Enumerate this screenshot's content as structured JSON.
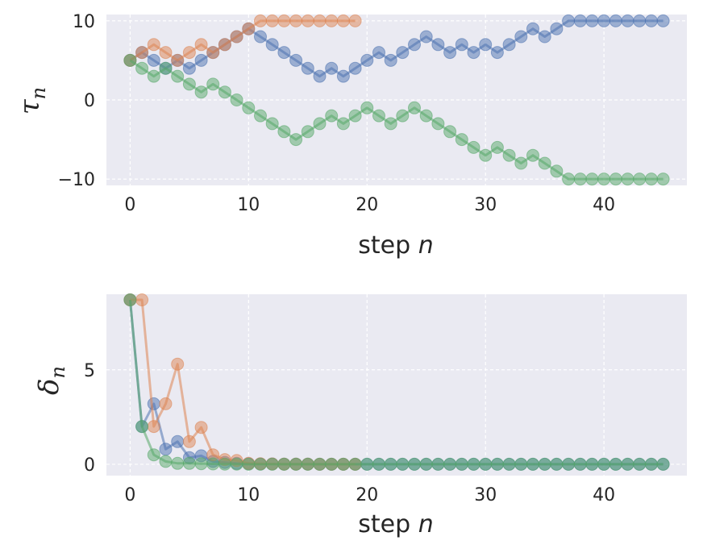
{
  "chart_data": [
    {
      "type": "line",
      "xlabel": "step n",
      "ylabel": "τ_n",
      "xlim": [
        -2,
        47
      ],
      "ylim": [
        -10.8,
        10.8
      ],
      "xticks": [
        0,
        10,
        20,
        30,
        40
      ],
      "yticks": [
        -10,
        0,
        10
      ],
      "ytick_labels": [
        "−10",
        "0",
        "10"
      ],
      "grid": true,
      "series": [
        {
          "name": "blue",
          "color": "#4C72B0",
          "x": [
            0,
            1,
            2,
            3,
            4,
            5,
            6,
            7,
            8,
            9,
            10,
            11,
            12,
            13,
            14,
            15,
            16,
            17,
            18,
            19,
            20,
            21,
            22,
            23,
            24,
            25,
            26,
            27,
            28,
            29,
            30,
            31,
            32,
            33,
            34,
            35,
            36,
            37,
            38,
            39,
            40,
            41,
            42,
            43,
            44,
            45
          ],
          "values": [
            5,
            6,
            5,
            4,
            5,
            4,
            5,
            6,
            7,
            8,
            9,
            8,
            7,
            6,
            5,
            4,
            3,
            4,
            3,
            4,
            5,
            6,
            5,
            6,
            7,
            8,
            7,
            6,
            7,
            6,
            7,
            6,
            7,
            8,
            9,
            8,
            9,
            10,
            10,
            10,
            10,
            10,
            10,
            10,
            10,
            10
          ]
        },
        {
          "name": "orange",
          "color": "#DD8452",
          "x": [
            0,
            1,
            2,
            3,
            4,
            5,
            6,
            7,
            8,
            9,
            10,
            11,
            12,
            13,
            14,
            15,
            16,
            17,
            18,
            19
          ],
          "values": [
            5,
            6,
            7,
            6,
            5,
            6,
            7,
            6,
            7,
            8,
            9,
            10,
            10,
            10,
            10,
            10,
            10,
            10,
            10,
            10
          ]
        },
        {
          "name": "green",
          "color": "#55A868",
          "x": [
            0,
            1,
            2,
            3,
            4,
            5,
            6,
            7,
            8,
            9,
            10,
            11,
            12,
            13,
            14,
            15,
            16,
            17,
            18,
            19,
            20,
            21,
            22,
            23,
            24,
            25,
            26,
            27,
            28,
            29,
            30,
            31,
            32,
            33,
            34,
            35,
            36,
            37,
            38,
            39,
            40,
            41,
            42,
            43,
            44,
            45
          ],
          "values": [
            5,
            4,
            3,
            4,
            3,
            2,
            1,
            2,
            1,
            0,
            -1,
            -2,
            -3,
            -4,
            -5,
            -4,
            -3,
            -2,
            -3,
            -2,
            -1,
            -2,
            -3,
            -2,
            -1,
            -2,
            -3,
            -4,
            -5,
            -6,
            -7,
            -6,
            -7,
            -8,
            -7,
            -8,
            -9,
            -10,
            -10,
            -10,
            -10,
            -10,
            -10,
            -10,
            -10,
            -10
          ]
        }
      ]
    },
    {
      "type": "line",
      "xlabel": "step n",
      "ylabel": "δ_n",
      "xlim": [
        -2,
        47
      ],
      "ylim": [
        -0.6,
        9.0
      ],
      "xticks": [
        0,
        10,
        20,
        30,
        40
      ],
      "yticks": [
        0,
        5
      ],
      "ytick_labels": [
        "0",
        "5"
      ],
      "grid": true,
      "series": [
        {
          "name": "blue",
          "color": "#4C72B0",
          "x": [
            0,
            1,
            2,
            3,
            4,
            5,
            6,
            7,
            8,
            9,
            10,
            11,
            12,
            13,
            14,
            15,
            16,
            17,
            18,
            19,
            20,
            21,
            22,
            23,
            24,
            25,
            26,
            27,
            28,
            29,
            30,
            31,
            32,
            33,
            34,
            35,
            36,
            37,
            38,
            39,
            40,
            41,
            42,
            43,
            44,
            45
          ],
          "values": [
            8.7,
            2.0,
            3.2,
            0.8,
            1.2,
            0.35,
            0.45,
            0.15,
            0.1,
            0.05,
            0.03,
            0.02,
            0.02,
            0.01,
            0.01,
            0.01,
            0,
            0,
            0,
            0,
            0,
            0,
            0,
            0,
            0,
            0,
            0,
            0,
            0,
            0,
            0,
            0,
            0,
            0,
            0,
            0,
            0,
            0,
            0,
            0,
            0,
            0,
            0,
            0,
            0,
            0
          ]
        },
        {
          "name": "orange",
          "color": "#DD8452",
          "x": [
            0,
            1,
            2,
            3,
            4,
            5,
            6,
            7,
            8,
            9,
            10,
            11,
            12,
            13,
            14,
            15,
            16,
            17,
            18,
            19
          ],
          "values": [
            8.7,
            8.7,
            2.0,
            3.2,
            5.3,
            1.2,
            1.95,
            0.5,
            0.25,
            0.2,
            0.05,
            0.03,
            0.02,
            0.01,
            0.01,
            0.01,
            0,
            0,
            0,
            0
          ]
        },
        {
          "name": "green",
          "color": "#55A868",
          "x": [
            0,
            1,
            2,
            3,
            4,
            5,
            6,
            7,
            8,
            9,
            10,
            11,
            12,
            13,
            14,
            15,
            16,
            17,
            18,
            19,
            20,
            21,
            22,
            23,
            24,
            25,
            26,
            27,
            28,
            29,
            30,
            31,
            32,
            33,
            34,
            35,
            36,
            37,
            38,
            39,
            40,
            41,
            42,
            43,
            44,
            45
          ],
          "values": [
            8.7,
            2.0,
            0.5,
            0.15,
            0.05,
            0.05,
            0.03,
            0.02,
            0.01,
            0.01,
            0,
            0,
            0,
            0,
            0,
            0,
            0,
            0,
            0,
            0,
            0,
            0,
            0,
            0,
            0,
            0,
            0,
            0,
            0,
            0,
            0,
            0,
            0,
            0,
            0,
            0,
            0,
            0,
            0,
            0,
            0,
            0,
            0,
            0,
            0,
            0
          ]
        }
      ]
    }
  ]
}
